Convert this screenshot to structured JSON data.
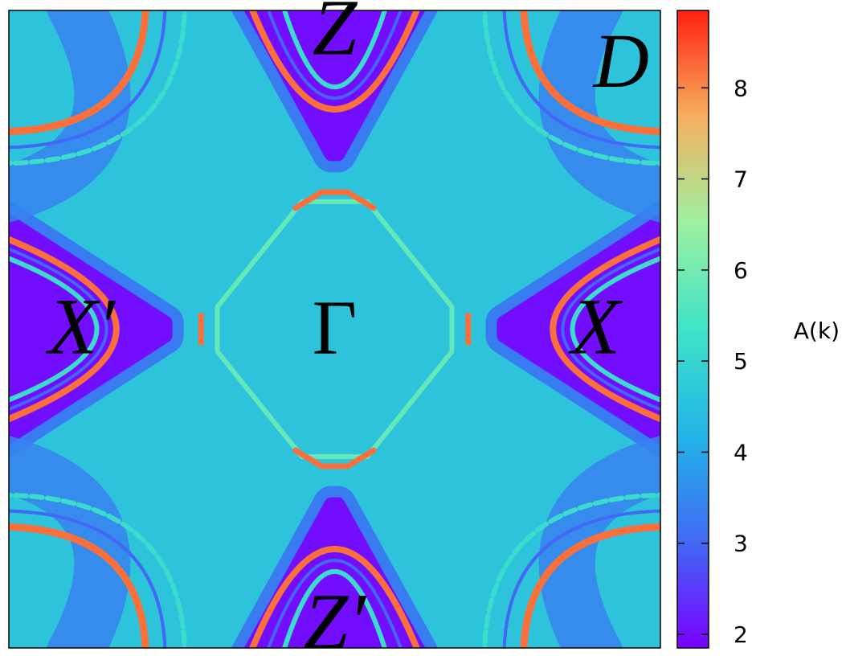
{
  "chart_data": {
    "type": "heatmap",
    "title": "",
    "panel_label": "D",
    "xlabel": "",
    "ylabel": "",
    "colorbar": {
      "label": "A(k)",
      "range": [
        1.85,
        8.85
      ],
      "ticks": [
        2,
        3,
        4,
        5,
        6,
        7,
        8
      ],
      "colormap": [
        "#7a00ff",
        "#4169f5",
        "#22b4e6",
        "#40e2c8",
        "#9ef0a0",
        "#f5b060",
        "#ff2010"
      ]
    },
    "grid": false,
    "point_labels": [
      {
        "name": "Gamma",
        "text": "Γ",
        "kx": 0,
        "ky": 0,
        "style": "upright"
      },
      {
        "name": "X",
        "text": "X",
        "kx": 1,
        "ky": 0,
        "style": "italic"
      },
      {
        "name": "X-prime",
        "text": "X′",
        "kx": -1,
        "ky": 0,
        "style": "italic"
      },
      {
        "name": "Z",
        "text": "Z",
        "kx": 0,
        "ky": 1,
        "style": "italic"
      },
      {
        "name": "Z-prime",
        "text": "Z′",
        "kx": 0,
        "ky": -1,
        "style": "italic"
      }
    ],
    "features": {
      "background_level": 4.6,
      "pocket_level": 2.0,
      "ridge_level": 8.2,
      "inner_ring_level": 5.8,
      "secondary_ridge_level": 5.2
    }
  }
}
